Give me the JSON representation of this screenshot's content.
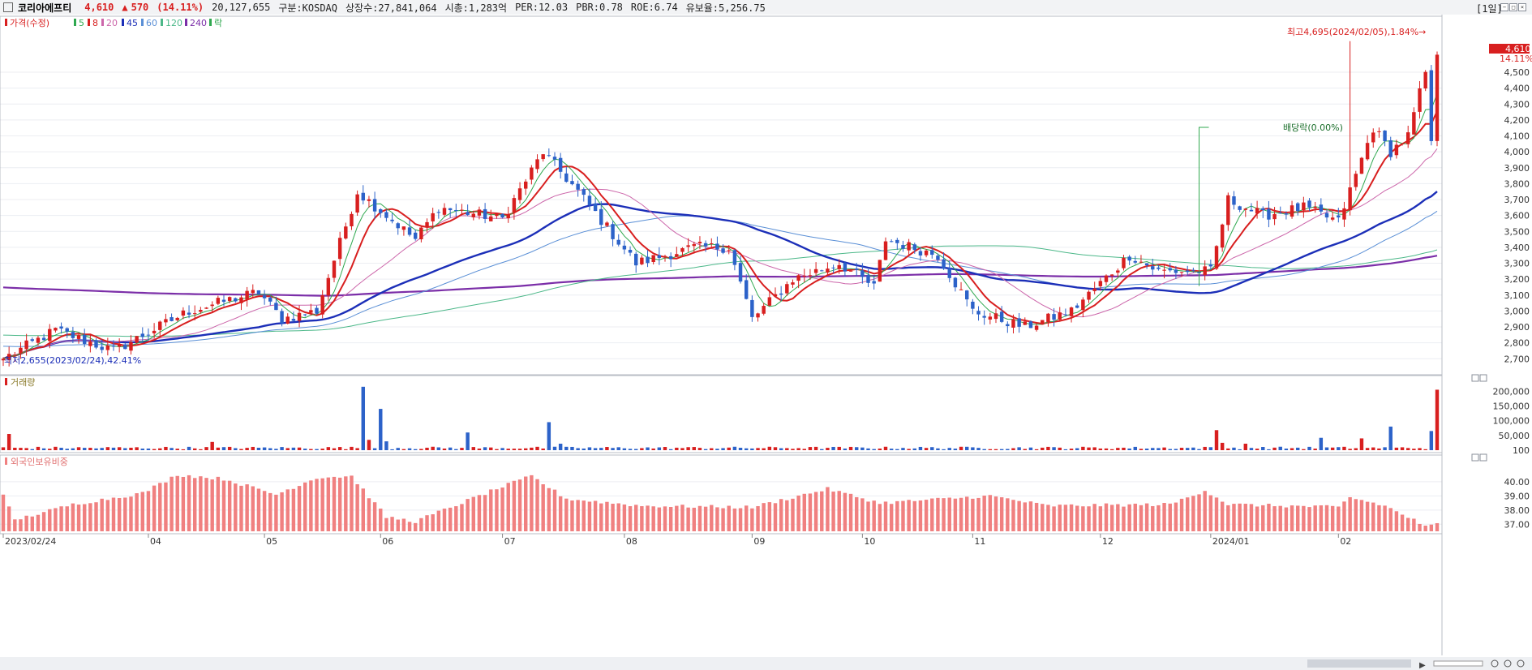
{
  "header": {
    "name": "코리아에프티",
    "price": "4,610",
    "change_arrow": "▲",
    "change": "570",
    "change_pct": "(14.11%)",
    "volume": "20,127,655",
    "market": "구분:KOSDAQ",
    "listed": "상장수:27,841,064",
    "mcap": "시총:1,283억",
    "per": "PER:12.03",
    "pbr": "PBR:0.78",
    "roe": "ROE:6.74",
    "float": "유보율:5,256.75",
    "period": "[1일]"
  },
  "colors": {
    "up": "#d81f1f",
    "down": "#2c62c9",
    "ma5": "#2fa84f",
    "ma8": "#d81f1f",
    "ma20": "#cc66aa",
    "ma45": "#1c2fb8",
    "ma60": "#5a8fd6",
    "ma120": "#4cb889",
    "ma240": "#7b2ea8",
    "foreign": "#f08080"
  },
  "price_panel": {
    "legend": {
      "main": "가격(수정)",
      "ma5": "5",
      "ma8": "8",
      "ma20": "20",
      "ma45": "45",
      "ma60": "60",
      "ma120": "120",
      "ma240": "240",
      "rak": "락"
    },
    "last_price_tag": "4,610",
    "last_pct_tag": "14.11%",
    "high_note": "최고4,695(2024/02/05),1.84%→",
    "low_note": "최저2,655(2023/02/24),42.41%",
    "dividend_note": "배당락(0.00%)"
  },
  "volume_panel": {
    "title": "거래량"
  },
  "foreign_panel": {
    "title": "외국인보유비중"
  },
  "x_labels": [
    "2023/02/24",
    "04",
    "05",
    "06",
    "07",
    "08",
    "09",
    "10",
    "11",
    "12",
    "2024/01",
    "02"
  ],
  "chart_data": [
    {
      "type": "candlestick",
      "title": "가격(수정)",
      "ylim": [
        2620,
        4760
      ],
      "y_ticks": [
        2700,
        2800,
        2900,
        3000,
        3100,
        3200,
        3300,
        3400,
        3500,
        3600,
        3700,
        3800,
        3900,
        4000,
        4100,
        4200,
        4300,
        4400,
        4500
      ],
      "y_tick_labels": [
        "2,700",
        "2,800",
        "2,900",
        "3,000",
        "3,100",
        "3,200",
        "3,300",
        "3,400",
        "3,500",
        "3,600",
        "3,700",
        "3,800",
        "3,900",
        "4,000",
        "4,100",
        "4,200",
        "4,300",
        "4,400",
        "4,500"
      ],
      "grid": true,
      "anchors": [
        {
          "date": "2023/02/24",
          "price": 2700
        },
        {
          "date": "2023/03/10",
          "price": 2880
        },
        {
          "date": "2023/03/24",
          "price": 2750
        },
        {
          "date": "2023/04/12",
          "price": 3000
        },
        {
          "date": "2023/04/28",
          "price": 3120
        },
        {
          "date": "2023/05/08",
          "price": 2950
        },
        {
          "date": "2023/05/16",
          "price": 3000
        },
        {
          "date": "2023/05/25",
          "price": 3750
        },
        {
          "date": "2023/06/02",
          "price": 3600
        },
        {
          "date": "2023/06/12",
          "price": 3450
        },
        {
          "date": "2023/06/16",
          "price": 3650
        },
        {
          "date": "2023/07/03",
          "price": 3580
        },
        {
          "date": "2023/07/12",
          "price": 4000
        },
        {
          "date": "2023/07/20",
          "price": 3750
        },
        {
          "date": "2023/08/03",
          "price": 3300
        },
        {
          "date": "2023/08/18",
          "price": 3400
        },
        {
          "date": "2023/08/28",
          "price": 3400
        },
        {
          "date": "2023/09/01",
          "price": 2950
        },
        {
          "date": "2023/09/12",
          "price": 3200
        },
        {
          "date": "2023/09/22",
          "price": 3300
        },
        {
          "date": "2023/10/06",
          "price": 3150
        },
        {
          "date": "2023/10/11",
          "price": 3450
        },
        {
          "date": "2023/10/24",
          "price": 3350
        },
        {
          "date": "2023/11/01",
          "price": 3000
        },
        {
          "date": "2023/11/14",
          "price": 2900
        },
        {
          "date": "2023/11/24",
          "price": 3000
        },
        {
          "date": "2023/12/08",
          "price": 3350
        },
        {
          "date": "2023/12/15",
          "price": 3250
        },
        {
          "date": "2024/01/02",
          "price": 3250
        },
        {
          "date": "2024/01/05",
          "price": 3700
        },
        {
          "date": "2024/01/15",
          "price": 3600
        },
        {
          "date": "2024/01/24",
          "price": 3650
        },
        {
          "date": "2024/02/01",
          "price": 3560
        },
        {
          "date": "2024/02/13",
          "price": 4150
        },
        {
          "date": "2024/02/16",
          "price": 4000
        },
        {
          "date": "2024/02/21",
          "price": 4100
        },
        {
          "date": "2024/02/26",
          "price": 4500
        },
        {
          "date": "2024/02/27",
          "price": 4040
        },
        {
          "date": "2024/02/28",
          "price": 4610
        }
      ],
      "high": {
        "date": "2024/02/05",
        "price": 4695
      },
      "low": {
        "date": "2023/02/24",
        "price": 2655
      }
    },
    {
      "type": "bar",
      "title": "거래량",
      "ylim": [
        0,
        220000
      ],
      "y_ticks": [
        200000,
        150000,
        100000,
        50000,
        100
      ],
      "y_tick_labels": [
        "200,000",
        "150,000",
        "100,000",
        "50,000",
        "100"
      ],
      "spikes": [
        {
          "date": "2023/02/27",
          "value": 55000
        },
        {
          "date": "2023/04/18",
          "value": 28000
        },
        {
          "date": "2023/05/26",
          "value": 215000
        },
        {
          "date": "2023/05/30",
          "value": 35000
        },
        {
          "date": "2023/06/01",
          "value": 140000
        },
        {
          "date": "2023/06/02",
          "value": 30000
        },
        {
          "date": "2023/06/23",
          "value": 60000
        },
        {
          "date": "2023/07/13",
          "value": 95000
        },
        {
          "date": "2023/07/17",
          "value": 22000
        },
        {
          "date": "2024/01/03",
          "value": 68000
        },
        {
          "date": "2024/01/04",
          "value": 25000
        },
        {
          "date": "2024/01/10",
          "value": 22000
        },
        {
          "date": "2024/01/29",
          "value": 42000
        },
        {
          "date": "2024/02/07",
          "value": 40000
        },
        {
          "date": "2024/02/16",
          "value": 80000
        },
        {
          "date": "2024/02/27",
          "value": 65000
        },
        {
          "date": "2024/02/28",
          "value": 205000
        }
      ]
    },
    {
      "type": "bar",
      "title": "외국인보유비중",
      "ylim": [
        36.5,
        41.2
      ],
      "y_ticks": [
        40.0,
        39.0,
        38.0,
        37.0
      ],
      "y_tick_labels": [
        "40.00",
        "39.00",
        "38.00",
        "37.00"
      ],
      "anchors": [
        {
          "date": "2023/02/24",
          "value": 39.0
        },
        {
          "date": "2023/02/28",
          "value": 37.3
        },
        {
          "date": "2023/03/15",
          "value": 38.4
        },
        {
          "date": "2023/03/31",
          "value": 39.2
        },
        {
          "date": "2023/04/10",
          "value": 40.5
        },
        {
          "date": "2023/04/20",
          "value": 40.2
        },
        {
          "date": "2023/05/04",
          "value": 39.1
        },
        {
          "date": "2023/05/16",
          "value": 40.3
        },
        {
          "date": "2023/05/24",
          "value": 40.4
        },
        {
          "date": "2023/06/02",
          "value": 37.5
        },
        {
          "date": "2023/06/12",
          "value": 37.2
        },
        {
          "date": "2023/06/30",
          "value": 39.5
        },
        {
          "date": "2023/07/10",
          "value": 40.4
        },
        {
          "date": "2023/07/18",
          "value": 38.8
        },
        {
          "date": "2023/08/04",
          "value": 38.3
        },
        {
          "date": "2023/09/01",
          "value": 38.2
        },
        {
          "date": "2023/09/20",
          "value": 39.5
        },
        {
          "date": "2023/10/10",
          "value": 38.5
        },
        {
          "date": "2023/11/06",
          "value": 39.0
        },
        {
          "date": "2023/11/20",
          "value": 38.3
        },
        {
          "date": "2023/12/19",
          "value": 38.4
        },
        {
          "date": "2023/12/28",
          "value": 39.4
        },
        {
          "date": "2024/01/05",
          "value": 38.4
        },
        {
          "date": "2024/02/01",
          "value": 38.2
        },
        {
          "date": "2024/02/05",
          "value": 38.9
        },
        {
          "date": "2024/02/15",
          "value": 38.3
        },
        {
          "date": "2024/02/22",
          "value": 37.3
        },
        {
          "date": "2024/02/26",
          "value": 36.8
        },
        {
          "date": "2024/02/28",
          "value": 37.0
        }
      ]
    }
  ]
}
